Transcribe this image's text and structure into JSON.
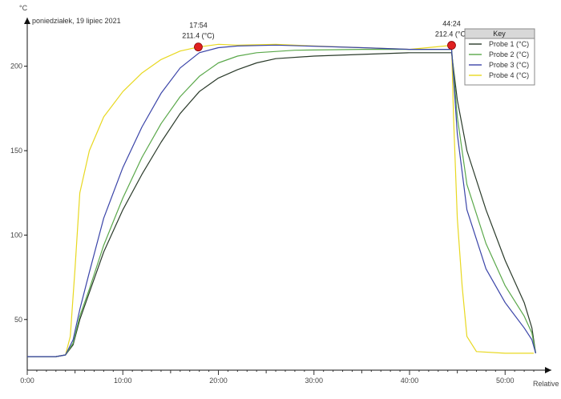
{
  "chart_data": {
    "type": "line",
    "date_label": "poniedziałek, 19 lipiec 2021",
    "y_unit": "°C",
    "x_axis_label": "Relative",
    "xlim": [
      0,
      53.5
    ],
    "ylim": [
      20,
      225
    ],
    "x_ticks": [
      {
        "v": 0,
        "label": "0:00"
      },
      {
        "v": 10,
        "label": "10:00"
      },
      {
        "v": 20,
        "label": "20:00"
      },
      {
        "v": 30,
        "label": "30:00"
      },
      {
        "v": 40,
        "label": "40:00"
      },
      {
        "v": 50,
        "label": "50:00"
      }
    ],
    "y_ticks": [
      {
        "v": 50,
        "label": "50"
      },
      {
        "v": 100,
        "label": "100"
      },
      {
        "v": 150,
        "label": "150"
      },
      {
        "v": 200,
        "label": "200"
      }
    ],
    "legend": {
      "title": "Key",
      "position": "top-right"
    },
    "annotations": [
      {
        "x": 17.9,
        "y": 211.4,
        "time": "17:54",
        "value": "211.4 (°C)",
        "color": "#e02020"
      },
      {
        "x": 44.4,
        "y": 212.4,
        "time": "44:24",
        "value": "212.4 (°C)",
        "color": "#e02020"
      }
    ],
    "series": [
      {
        "name": "Probe 1 (°C)",
        "color": "#2a3a2a",
        "points": [
          [
            0,
            28
          ],
          [
            3,
            28
          ],
          [
            4,
            29
          ],
          [
            4.8,
            35
          ],
          [
            5.5,
            50
          ],
          [
            6.5,
            66
          ],
          [
            8,
            90
          ],
          [
            10,
            115
          ],
          [
            12,
            136
          ],
          [
            14,
            155
          ],
          [
            16,
            172
          ],
          [
            18,
            185
          ],
          [
            20,
            193
          ],
          [
            22,
            198
          ],
          [
            24,
            202
          ],
          [
            26,
            204.5
          ],
          [
            30,
            206
          ],
          [
            35,
            207
          ],
          [
            40,
            208
          ],
          [
            44,
            208
          ],
          [
            44.4,
            208
          ],
          [
            45,
            180
          ],
          [
            46,
            150
          ],
          [
            48,
            115
          ],
          [
            50,
            85
          ],
          [
            52,
            60
          ],
          [
            52.8,
            45
          ],
          [
            53.2,
            30
          ]
        ]
      },
      {
        "name": "Probe 2 (°C)",
        "color": "#5aa84a",
        "points": [
          [
            0,
            28
          ],
          [
            3,
            28
          ],
          [
            4,
            29
          ],
          [
            4.8,
            36
          ],
          [
            5.5,
            52
          ],
          [
            6.5,
            68
          ],
          [
            8,
            94
          ],
          [
            10,
            122
          ],
          [
            12,
            146
          ],
          [
            14,
            166
          ],
          [
            16,
            182
          ],
          [
            18,
            194
          ],
          [
            20,
            202
          ],
          [
            22,
            206
          ],
          [
            24,
            208
          ],
          [
            28,
            209.5
          ],
          [
            35,
            210
          ],
          [
            40,
            210
          ],
          [
            44,
            210
          ],
          [
            44.4,
            210
          ],
          [
            45,
            170
          ],
          [
            46,
            130
          ],
          [
            48,
            95
          ],
          [
            50,
            70
          ],
          [
            52,
            52
          ],
          [
            52.8,
            42
          ],
          [
            53.2,
            30
          ]
        ]
      },
      {
        "name": "Probe 3 (°C)",
        "color": "#3a44a8",
        "points": [
          [
            0,
            28
          ],
          [
            3,
            28
          ],
          [
            4,
            29
          ],
          [
            4.8,
            38
          ],
          [
            5.5,
            56
          ],
          [
            6.5,
            78
          ],
          [
            8,
            110
          ],
          [
            10,
            140
          ],
          [
            12,
            164
          ],
          [
            14,
            184
          ],
          [
            16,
            199
          ],
          [
            18,
            208
          ],
          [
            20,
            211
          ],
          [
            22,
            212
          ],
          [
            26,
            212.5
          ],
          [
            35,
            211
          ],
          [
            40,
            210
          ],
          [
            44,
            210
          ],
          [
            44.4,
            210
          ],
          [
            45,
            160
          ],
          [
            46,
            115
          ],
          [
            48,
            80
          ],
          [
            50,
            60
          ],
          [
            52,
            45
          ],
          [
            52.8,
            38
          ],
          [
            53.2,
            30
          ]
        ]
      },
      {
        "name": "Probe 4 (°C)",
        "color": "#e8d820",
        "points": [
          [
            0,
            28
          ],
          [
            3,
            28
          ],
          [
            4,
            29
          ],
          [
            4.5,
            40
          ],
          [
            5,
            80
          ],
          [
            5.5,
            125
          ],
          [
            6.5,
            150
          ],
          [
            8,
            170
          ],
          [
            10,
            185
          ],
          [
            12,
            196
          ],
          [
            14,
            204
          ],
          [
            16,
            209
          ],
          [
            17.9,
            211.4
          ],
          [
            20,
            213
          ],
          [
            22,
            212.5
          ],
          [
            26,
            213
          ],
          [
            30,
            212
          ],
          [
            35,
            211
          ],
          [
            40,
            210
          ],
          [
            44.4,
            212.4
          ],
          [
            44.6,
            170
          ],
          [
            45,
            110
          ],
          [
            45.5,
            70
          ],
          [
            46,
            40
          ],
          [
            47,
            31
          ],
          [
            50,
            30
          ],
          [
            53,
            30
          ]
        ]
      }
    ]
  }
}
